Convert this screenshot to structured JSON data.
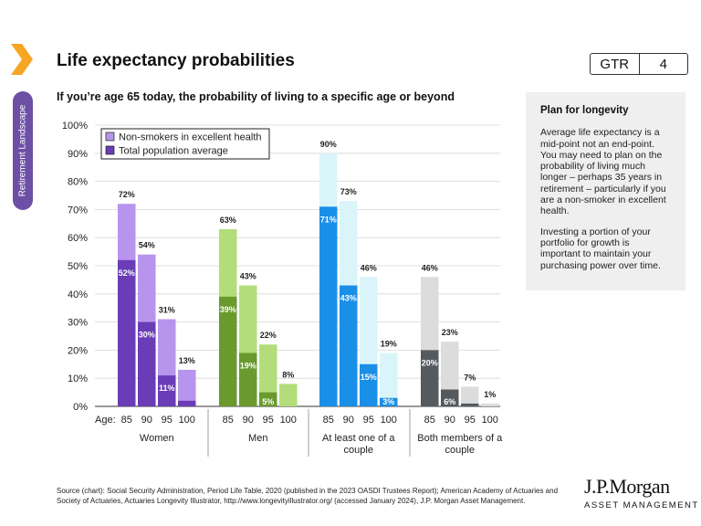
{
  "sidebar": {
    "tab_label": "Retirement Landscape"
  },
  "header": {
    "title": "Life expectancy probabilities",
    "badge_left": "GTR",
    "badge_right": "4"
  },
  "subtitle": "If you’re age 65 today, the probability of living to a specific age or beyond",
  "plan": {
    "heading": "Plan for longevity",
    "para1": "Average life expectancy is a mid-point not an end-point. You may need to plan on the probability of living much longer – perhaps 35 years in retirement – particularly if you are a non-smoker in excellent health.",
    "para2": "Investing a portion of your portfolio for growth is important to maintain your purchasing power over time."
  },
  "source": {
    "text1": "Source (chart): Social Security Administration, Period Life Table, 2020 (published in the 2023 OASDI Trustees Report); American Academy of Actuaries and Society of Actuaries, Actuaries Longevity Illustrator, ",
    "link": "http://www.longevityillustrator.org/",
    "text2": " (accessed January 2024), J.P. Morgan Asset Management."
  },
  "logo": {
    "line1": "J.P.Morgan",
    "line2": "ASSET MANAGEMENT"
  },
  "chart_data": {
    "type": "bar",
    "ylim": [
      0,
      100
    ],
    "yticks": [
      "0%",
      "10%",
      "20%",
      "30%",
      "40%",
      "50%",
      "60%",
      "70%",
      "80%",
      "90%",
      "100%"
    ],
    "age_prefix": "Age:",
    "ages": [
      "85",
      "90",
      "95",
      "100"
    ],
    "legend": {
      "position": "top-left",
      "items": [
        "Non-smokers in excellent health",
        "Total population average"
      ]
    },
    "grid": true,
    "groups": [
      {
        "label": [
          "Women"
        ],
        "color_light": "#b795ec",
        "color_dark": "#6a3cb5",
        "nonsmoker": [
          72,
          54,
          31,
          13
        ],
        "total": [
          52,
          30,
          11,
          2
        ],
        "nonsmoker_labels": [
          "72%",
          "54%",
          "31%",
          "13%"
        ],
        "total_labels": [
          "52%",
          "30%",
          "11%",
          ""
        ]
      },
      {
        "label": [
          "Men"
        ],
        "color_light": "#b3dd7a",
        "color_dark": "#6a9a2e",
        "nonsmoker": [
          63,
          43,
          22,
          8
        ],
        "total": [
          39,
          19,
          5,
          0
        ],
        "nonsmoker_labels": [
          "63%",
          "43%",
          "22%",
          "8%"
        ],
        "total_labels": [
          "39%",
          "19%",
          "5%",
          ""
        ]
      },
      {
        "label": [
          "At least one of a",
          "couple"
        ],
        "color_light": "#d9f5f9",
        "color_dark": "#1a8fe8",
        "nonsmoker": [
          90,
          73,
          46,
          19
        ],
        "total": [
          71,
          43,
          15,
          3
        ],
        "nonsmoker_labels": [
          "90%",
          "73%",
          "46%",
          "19%"
        ],
        "total_labels": [
          "71%",
          "43%",
          "15%",
          "3%"
        ]
      },
      {
        "label": [
          "Both members of a",
          "couple"
        ],
        "color_light": "#dcdcdc",
        "color_dark": "#555a5e",
        "nonsmoker": [
          46,
          23,
          7,
          1
        ],
        "total": [
          20,
          6,
          1,
          0
        ],
        "nonsmoker_labels": [
          "46%",
          "23%",
          "7%",
          "1%"
        ],
        "total_labels": [
          "20%",
          "6%",
          "",
          ""
        ]
      }
    ]
  }
}
